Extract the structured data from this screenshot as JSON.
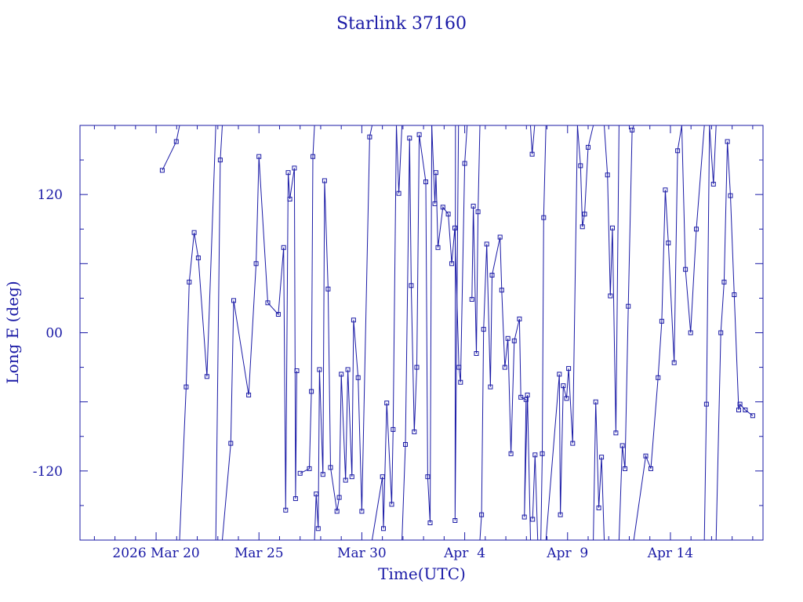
{
  "chart_data": {
    "type": "line",
    "title": "Starlink 37160",
    "xlabel": "Time(UTC)",
    "ylabel": "Long E (deg)",
    "x_unit": "day of March 2026 (UTC)",
    "xlim": [
      16.3,
      49.5
    ],
    "ylim": [
      -180,
      180
    ],
    "x_ticks": [
      {
        "x": 20,
        "label": "2026 Mar 20"
      },
      {
        "x": 25,
        "label": "Mar 25"
      },
      {
        "x": 30,
        "label": "Mar 30"
      },
      {
        "x": 35,
        "label": "Apr  4"
      },
      {
        "x": 40,
        "label": "Apr  9"
      },
      {
        "x": 45,
        "label": "Apr 14"
      }
    ],
    "y_ticks": [
      {
        "y": 120,
        "label": "120"
      },
      {
        "y": 0,
        "label": "00"
      },
      {
        "y": -120,
        "label": "-120"
      }
    ],
    "grid": false,
    "marker": "square",
    "color": "#1a1aa6",
    "series": [
      {
        "values": [
          [
            20.3,
            141
          ],
          [
            20.98,
            166
          ],
          [
            21.14,
            180
          ],
          null,
          [
            21.14,
            -180
          ],
          [
            21.46,
            -47
          ],
          [
            21.61,
            44
          ],
          [
            21.85,
            87
          ],
          [
            22.05,
            65
          ],
          [
            22.47,
            -38
          ],
          [
            22.9,
            180
          ],
          null,
          [
            22.9,
            -180
          ],
          [
            23.12,
            150
          ],
          [
            23.22,
            180
          ],
          null,
          [
            23.22,
            -180
          ],
          [
            23.63,
            -96
          ],
          [
            23.77,
            28
          ],
          [
            24.5,
            -54
          ],
          [
            24.86,
            60
          ],
          [
            25.0,
            153
          ],
          [
            25.43,
            26
          ],
          [
            25.94,
            16
          ],
          [
            26.2,
            74
          ],
          [
            26.3,
            -154
          ],
          [
            26.42,
            139
          ],
          [
            26.5,
            116
          ],
          [
            26.72,
            143
          ],
          [
            26.78,
            -144
          ],
          [
            26.84,
            -33
          ],
          null,
          [
            27.0,
            -122
          ],
          [
            27.45,
            -118
          ],
          [
            27.55,
            -51
          ],
          [
            27.62,
            153
          ],
          [
            27.7,
            180
          ],
          null,
          [
            27.7,
            -180
          ],
          [
            27.78,
            -140
          ],
          [
            27.88,
            -170
          ],
          [
            27.94,
            -32
          ],
          [
            28.11,
            -123
          ],
          [
            28.19,
            132
          ],
          [
            28.36,
            38
          ],
          [
            28.48,
            -117
          ],
          [
            28.79,
            -155
          ],
          [
            28.9,
            -143
          ],
          [
            29.0,
            -36
          ],
          [
            29.21,
            -128
          ],
          [
            29.32,
            -32
          ],
          [
            29.52,
            -125
          ],
          [
            29.6,
            11
          ],
          [
            29.82,
            -39
          ],
          [
            30.0,
            -155
          ],
          [
            30.38,
            170
          ],
          [
            30.5,
            180
          ],
          null,
          [
            30.5,
            -180
          ],
          [
            31.0,
            -125
          ],
          [
            31.05,
            -170
          ],
          [
            31.21,
            -61
          ],
          [
            31.45,
            -149
          ],
          [
            31.52,
            -84
          ],
          [
            31.68,
            180
          ],
          null,
          [
            31.68,
            180
          ],
          [
            31.8,
            121
          ],
          [
            31.95,
            180
          ],
          null,
          [
            31.95,
            -180
          ],
          [
            32.12,
            -97
          ],
          [
            32.32,
            169
          ],
          [
            32.4,
            41
          ],
          [
            32.55,
            -86
          ],
          [
            32.67,
            -30
          ],
          [
            32.79,
            172
          ],
          [
            33.11,
            131
          ],
          [
            33.2,
            -125
          ],
          [
            33.32,
            -165
          ],
          [
            33.4,
            180
          ],
          null,
          [
            33.4,
            180
          ],
          [
            33.55,
            112
          ],
          [
            33.6,
            139
          ],
          [
            33.7,
            74
          ],
          [
            33.94,
            109
          ],
          [
            34.2,
            103
          ],
          [
            34.37,
            60
          ],
          [
            34.52,
            91
          ],
          [
            34.72,
            -30
          ],
          [
            34.8,
            -43
          ],
          [
            35.0,
            147
          ],
          [
            35.12,
            180
          ],
          null,
          [
            34.7,
            180
          ],
          [
            34.53,
            -163
          ],
          [
            34.55,
            180
          ],
          null,
          [
            35.35,
            29
          ],
          [
            35.42,
            110
          ],
          [
            35.57,
            -18
          ],
          [
            35.65,
            105
          ],
          [
            35.74,
            180
          ],
          null,
          [
            35.74,
            -180
          ],
          [
            35.82,
            -158
          ],
          [
            35.92,
            3
          ],
          [
            36.07,
            77
          ],
          [
            36.25,
            -47
          ],
          [
            36.33,
            50
          ],
          [
            36.72,
            83
          ],
          [
            36.8,
            37
          ],
          [
            36.95,
            -30
          ],
          [
            37.1,
            -5
          ],
          [
            37.25,
            -105
          ],
          [
            37.41,
            -7
          ],
          [
            37.66,
            12
          ],
          [
            37.73,
            -56
          ],
          [
            37.98,
            -58
          ],
          [
            37.9,
            -160
          ],
          [
            38.05,
            -54
          ],
          [
            38.2,
            -180
          ],
          null,
          [
            38.2,
            180
          ],
          [
            38.28,
            155
          ],
          [
            38.4,
            180
          ],
          null,
          [
            38.3,
            -162
          ],
          [
            38.42,
            -106
          ],
          [
            38.55,
            -180
          ],
          null,
          [
            38.7,
            -180
          ],
          [
            38.77,
            -105
          ],
          [
            38.84,
            100
          ],
          [
            38.95,
            180
          ],
          null,
          [
            38.95,
            -180
          ],
          [
            39.6,
            -36
          ],
          [
            39.65,
            -158
          ],
          [
            39.79,
            -46
          ],
          [
            39.95,
            -57
          ],
          [
            40.05,
            -31
          ],
          [
            40.25,
            -96
          ],
          [
            40.48,
            180
          ],
          null,
          [
            40.48,
            180
          ],
          [
            40.63,
            145
          ],
          [
            40.72,
            92
          ],
          [
            40.83,
            103
          ],
          [
            41.0,
            161
          ],
          [
            41.25,
            180
          ],
          null,
          [
            41.25,
            -180
          ],
          [
            41.37,
            -60
          ],
          [
            41.52,
            -152
          ],
          [
            41.65,
            -108
          ],
          [
            41.78,
            -180
          ],
          null,
          [
            41.78,
            180
          ],
          [
            41.94,
            137
          ],
          [
            42.08,
            32
          ],
          [
            42.18,
            91
          ],
          [
            42.35,
            -87
          ],
          [
            42.5,
            180
          ],
          null,
          [
            42.5,
            -180
          ],
          [
            42.66,
            -98
          ],
          [
            42.79,
            -118
          ],
          [
            42.95,
            23
          ],
          [
            43.14,
            176
          ],
          [
            43.22,
            180
          ],
          null,
          [
            43.22,
            -180
          ],
          [
            43.8,
            -107
          ],
          [
            44.05,
            -118
          ],
          [
            44.4,
            -39
          ],
          [
            44.58,
            10
          ],
          [
            44.75,
            124
          ],
          [
            44.9,
            78
          ],
          [
            45.18,
            -26
          ],
          [
            45.35,
            158
          ],
          [
            45.55,
            180
          ],
          null,
          [
            45.55,
            180
          ],
          [
            45.73,
            55
          ],
          [
            45.98,
            0
          ],
          [
            46.26,
            90
          ],
          [
            46.65,
            180
          ],
          null,
          [
            46.65,
            -180
          ],
          [
            46.75,
            -62
          ],
          [
            46.9,
            180
          ],
          null,
          [
            46.9,
            180
          ],
          [
            47.09,
            129
          ],
          [
            47.22,
            180
          ],
          null,
          [
            47.22,
            -180
          ],
          [
            47.45,
            0
          ],
          [
            47.61,
            44
          ],
          [
            47.77,
            166
          ],
          [
            47.92,
            119
          ],
          [
            48.1,
            33
          ],
          [
            48.32,
            -67
          ],
          [
            48.38,
            -62
          ],
          [
            48.64,
            -67
          ],
          [
            49.0,
            -72
          ]
        ]
      }
    ]
  }
}
